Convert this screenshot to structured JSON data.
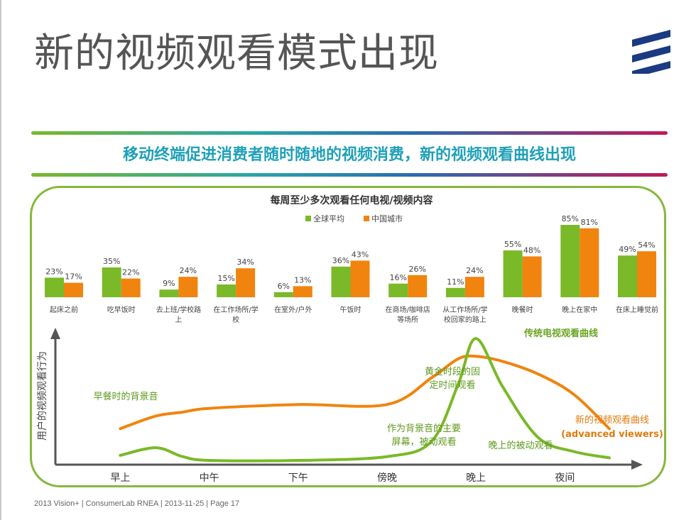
{
  "slide": {
    "title": "新的视频观看模式出现",
    "subtitle": "移动终端促进消费者随时随地的视频消费，新的视频观看曲线出现",
    "footer": "2013 Vision+  |  ConsumerLab RNEA  |  2013-11-25  |  Page 17",
    "colors": {
      "green": "#7ab928",
      "orange": "#f0840f",
      "teal": "#1fa0b8",
      "grey_title": "#555555"
    }
  },
  "chart_data": [
    {
      "type": "bar",
      "title": "每周至少多次观看任何电视/视频内容",
      "categories": [
        "起床之前",
        "吃早饭时",
        "去上班/学校路上",
        "在工作场所/学校",
        "在室外/户外",
        "午饭时",
        "在商场/咖啡店等场所",
        "从工作场所/学校回家的路上",
        "晚餐时",
        "晚上在家中",
        "在床上睡觉前"
      ],
      "category_lines": [
        [
          "起床之前"
        ],
        [
          "吃早饭时"
        ],
        [
          "去上班/学校路",
          "上"
        ],
        [
          "在工作场所/学",
          "校"
        ],
        [
          "在室外/户外"
        ],
        [
          "午饭时"
        ],
        [
          "在商场/咖啡店",
          "等场所"
        ],
        [
          "从工作场所/学",
          "校回家的路上"
        ],
        [
          "晚餐时"
        ],
        [
          "晚上在家中"
        ],
        [
          "在床上睡觉前"
        ]
      ],
      "series": [
        {
          "name": "全球平均",
          "color": "#7ab928",
          "values": [
            23,
            35,
            9,
            15,
            6,
            36,
            16,
            11,
            55,
            85,
            49
          ]
        },
        {
          "name": "中国城市",
          "color": "#f0840f",
          "values": [
            17,
            22,
            24,
            34,
            13,
            43,
            26,
            24,
            48,
            81,
            54
          ]
        }
      ],
      "unit": "%",
      "ylim": [
        0,
        100
      ],
      "legend": "top-center"
    },
    {
      "type": "line",
      "xlabel": "",
      "ylabel": "用户的视频观看行为",
      "x_ticks": [
        "早上",
        "中午",
        "下午",
        "傍晚",
        "晚上",
        "夜间"
      ],
      "x": [
        0,
        0.4,
        0.7,
        1.0,
        2.0,
        3.0,
        3.5,
        3.8,
        4.0,
        4.3,
        4.7,
        5.1,
        5.5
      ],
      "xlim": [
        -0.65,
        5.5
      ],
      "ylim": [
        0,
        100
      ],
      "series": [
        {
          "name": "传统电视观看曲线",
          "color": "#7ab928",
          "values": [
            4,
            10,
            3,
            0,
            0,
            3,
            15,
            60,
            96,
            58,
            18,
            7,
            2
          ]
        },
        {
          "name": "新的视频观看曲线",
          "sub_label": "(advanced viewers)",
          "color": "#f0840f",
          "values": [
            25,
            35,
            38,
            41,
            44,
            44,
            65,
            80,
            82,
            78,
            68,
            52,
            25
          ]
        }
      ],
      "annotations": [
        {
          "id": "breakfast",
          "lines": [
            "早餐时的背景音"
          ],
          "color": "#7ab928"
        },
        {
          "id": "prime",
          "lines": [
            "黄金时段的固",
            "定时间观看"
          ],
          "color": "#7ab928"
        },
        {
          "id": "background",
          "lines": [
            "作为背景音的主要",
            "屏幕，被动观看"
          ],
          "color": "#7ab928"
        },
        {
          "id": "night_passive",
          "lines": [
            "晚上的被动观看"
          ],
          "color": "#7ab928"
        }
      ]
    }
  ]
}
